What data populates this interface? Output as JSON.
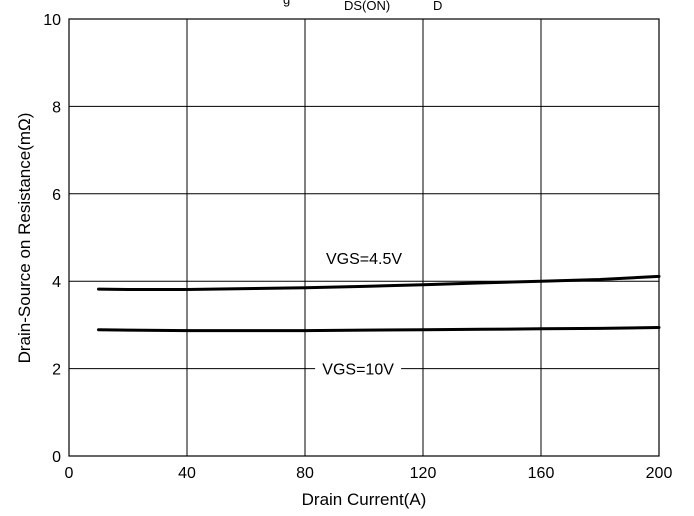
{
  "chart_data": {
    "type": "line",
    "title_fragments": [
      "g",
      "DS(ON)",
      "D"
    ],
    "xlabel": "Drain Current(A)",
    "ylabel": "Drain-Source on Resistance(mΩ)",
    "xlim": [
      0,
      200
    ],
    "ylim": [
      0,
      10
    ],
    "xticks": [
      "0",
      "40",
      "80",
      "120",
      "160",
      "200"
    ],
    "yticks": [
      "0",
      "2",
      "4",
      "6",
      "8",
      "10"
    ],
    "grid": true,
    "series": [
      {
        "name": "VGS=4.5V",
        "color": "#000000",
        "x": [
          10,
          20,
          40,
          60,
          80,
          100,
          120,
          140,
          160,
          180,
          200
        ],
        "y": [
          3.82,
          3.81,
          3.81,
          3.83,
          3.85,
          3.88,
          3.92,
          3.96,
          4.0,
          4.04,
          4.11
        ]
      },
      {
        "name": "VGS=10V",
        "color": "#000000",
        "x": [
          10,
          20,
          40,
          60,
          80,
          100,
          120,
          140,
          160,
          180,
          200
        ],
        "y": [
          2.89,
          2.88,
          2.87,
          2.87,
          2.87,
          2.88,
          2.89,
          2.9,
          2.91,
          2.92,
          2.94
        ]
      }
    ]
  }
}
